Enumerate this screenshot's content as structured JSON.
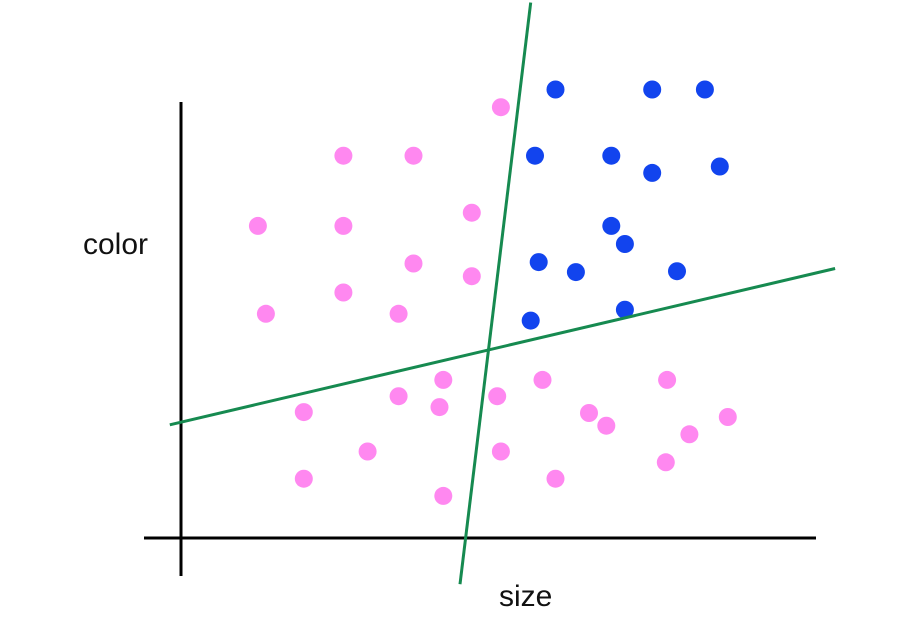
{
  "labels": {
    "y_axis": "color",
    "x_axis": "size"
  },
  "colors": {
    "pink": "#ff88f0",
    "blue": "#1244ee",
    "line": "#168a50",
    "axis": "#000000"
  },
  "chart_data": {
    "type": "scatter",
    "xlabel": "size",
    "ylabel": "color",
    "xlim": [
      0,
      10
    ],
    "ylim": [
      0,
      10
    ],
    "grid": false,
    "series": [
      {
        "color": "#ff88f0",
        "points": [
          [
            1.24,
            6.89
          ],
          [
            2.62,
            8.44
          ],
          [
            3.75,
            8.44
          ],
          [
            2.62,
            6.89
          ],
          [
            4.69,
            7.18
          ],
          [
            5.16,
            9.51
          ],
          [
            3.75,
            6.06
          ],
          [
            4.69,
            5.78
          ],
          [
            2.62,
            5.42
          ],
          [
            1.37,
            4.95
          ],
          [
            3.51,
            4.95
          ],
          [
            1.98,
            2.78
          ],
          [
            3.51,
            3.13
          ],
          [
            4.23,
            3.49
          ],
          [
            4.17,
            2.89
          ],
          [
            5.1,
            3.13
          ],
          [
            5.83,
            3.49
          ],
          [
            7.84,
            3.49
          ],
          [
            6.58,
            2.76
          ],
          [
            6.86,
            2.48
          ],
          [
            8.82,
            2.67
          ],
          [
            8.2,
            2.29
          ],
          [
            3.01,
            1.91
          ],
          [
            5.16,
            1.91
          ],
          [
            7.82,
            1.67
          ],
          [
            1.98,
            1.31
          ],
          [
            6.04,
            1.31
          ],
          [
            4.23,
            0.93
          ]
        ]
      },
      {
        "color": "#1244ee",
        "points": [
          [
            6.04,
            9.9
          ],
          [
            7.6,
            9.9
          ],
          [
            8.45,
            9.9
          ],
          [
            5.71,
            8.44
          ],
          [
            6.94,
            8.44
          ],
          [
            7.6,
            8.06
          ],
          [
            8.69,
            8.2
          ],
          [
            6.94,
            6.89
          ],
          [
            7.16,
            6.49
          ],
          [
            5.77,
            6.09
          ],
          [
            6.37,
            5.87
          ],
          [
            8.0,
            5.89
          ],
          [
            7.16,
            5.04
          ],
          [
            5.64,
            4.8
          ]
        ]
      }
    ],
    "lines": [
      {
        "from": [
          5.64,
          11.82
        ],
        "to": [
          4.5,
          -1.02
        ]
      },
      {
        "from": [
          -0.18,
          2.5
        ],
        "to": [
          10.55,
          5.95
        ]
      }
    ]
  }
}
